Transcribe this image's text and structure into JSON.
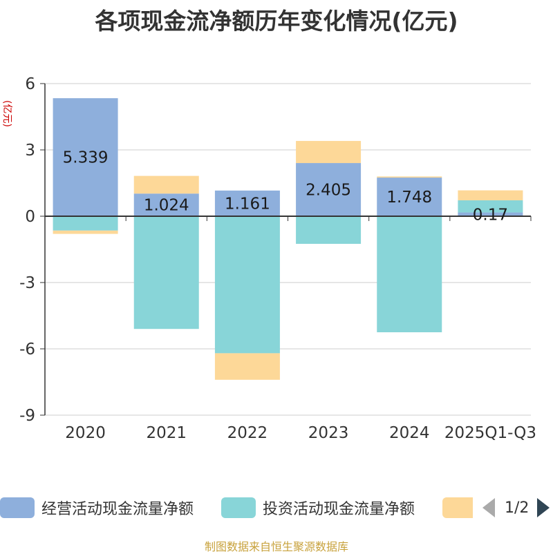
{
  "chart_data": {
    "type": "bar",
    "stacked": true,
    "title": "各项现金流净额历年变化情况(亿元)",
    "ylabel": "(亿元)",
    "xlabel": "",
    "categories": [
      "2020",
      "2021",
      "2022",
      "2023",
      "2024",
      "2025Q1-Q3"
    ],
    "ylim": [
      -9,
      6
    ],
    "yticks": [
      6,
      3,
      0,
      -3,
      -6,
      -9
    ],
    "grid": true,
    "series": [
      {
        "name": "经营活动现金流量净额",
        "color": "#8eafdc",
        "values": [
          5.339,
          1.024,
          1.161,
          2.405,
          1.748,
          0.17
        ],
        "labels": [
          "5.339",
          "1.024",
          "1.161",
          "2.405",
          "1.748",
          "0.17"
        ]
      },
      {
        "name": "投资活动现金流量净额",
        "color": "#88d5d8",
        "values": [
          -0.65,
          -5.1,
          -6.2,
          -1.25,
          -5.25,
          0.55
        ]
      },
      {
        "name": "",
        "color": "#fdd898",
        "values": [
          -0.15,
          0.8,
          -1.2,
          1.0,
          0.05,
          0.45
        ]
      }
    ]
  },
  "legend": {
    "items": [
      "经营活动现金流量净额",
      "投资活动现金流量净额",
      ""
    ],
    "page_text": "1/2"
  },
  "source_text": "制图数据来自恒生聚源数据库"
}
